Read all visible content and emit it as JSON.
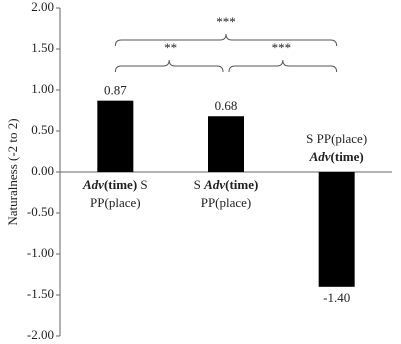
{
  "chart_data": {
    "type": "bar",
    "y_label": "Naturalness  (-2 to 2)",
    "categories": [
      [
        [
          {
            "text": "Adv",
            "bold": true,
            "italic": true
          },
          {
            "text": "(time)",
            "bold": true
          },
          {
            "text": " S"
          }
        ],
        [
          {
            "text": "PP(place)"
          }
        ]
      ],
      [
        [
          {
            "text": "S "
          },
          {
            "text": "Adv",
            "bold": true,
            "italic": true
          },
          {
            "text": "(time)",
            "bold": true
          }
        ],
        [
          {
            "text": "PP(place)"
          }
        ]
      ],
      [
        [
          {
            "text": "S PP(place)"
          }
        ],
        [
          {
            "text": "Adv",
            "bold": true,
            "italic": true
          },
          {
            "text": "(time)",
            "bold": true
          }
        ]
      ]
    ],
    "values": [
      0.87,
      0.68,
      -1.4
    ],
    "value_labels": [
      "0.87",
      "0.68",
      "-1.40"
    ],
    "color": "#000000",
    "ylim": [
      -2,
      2
    ],
    "yticks": [
      {
        "value": -2,
        "label": "-2.00"
      },
      {
        "value": -1.5,
        "label": "-1.50"
      },
      {
        "value": -1,
        "label": "-1.00"
      },
      {
        "value": -0.5,
        "label": "-0.50"
      },
      {
        "value": 0,
        "label": "0.00"
      },
      {
        "value": 0.5,
        "label": "0.50"
      },
      {
        "value": 1,
        "label": "1.00"
      },
      {
        "value": 1.5,
        "label": "1.50"
      },
      {
        "value": 2,
        "label": "2.00"
      }
    ],
    "significance": [
      {
        "from": 0,
        "to": 2,
        "label": "***"
      },
      {
        "from": 0,
        "to": 1,
        "label": "**"
      },
      {
        "from": 1,
        "to": 2,
        "label": "***"
      }
    ]
  }
}
